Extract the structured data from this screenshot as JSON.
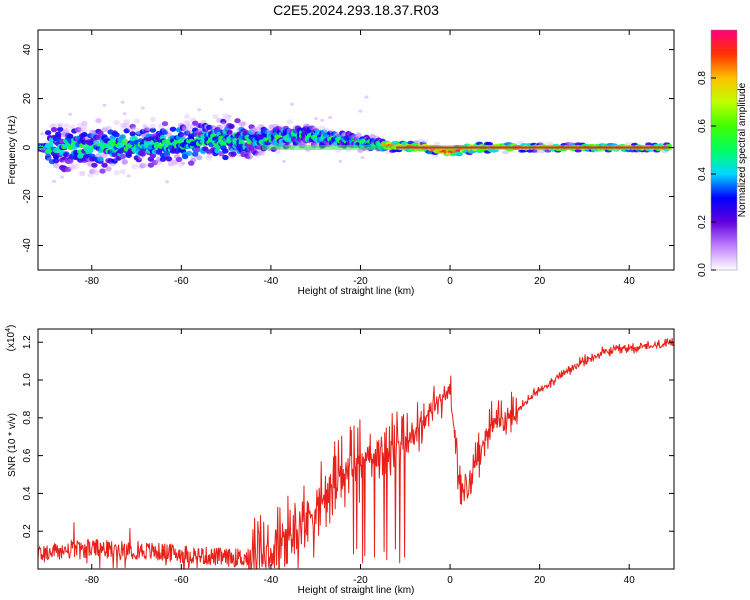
{
  "title": "C2E5.2024.293.18.37.R03",
  "chart_data": [
    {
      "type": "heatmap",
      "xlabel": "Height of straight line (km)",
      "ylabel": "Frequency (Hz)",
      "xlim": [
        -92,
        50
      ],
      "ylim": [
        -50,
        48
      ],
      "xticks": [
        -80,
        -60,
        -40,
        -20,
        0,
        20,
        40
      ],
      "yticks": [
        -40,
        -20,
        0,
        20,
        40
      ],
      "grid": false,
      "colorbar": {
        "label": "Normalized spectral amplitude",
        "range": [
          0,
          1
        ],
        "ticks": [
          "0.0",
          "0.2",
          "0.4",
          "0.6",
          "0.8"
        ],
        "colormap": [
          "#ffffff",
          "#c080ff",
          "#6000e0",
          "#0000ff",
          "#00d8ff",
          "#00ff60",
          "#40ff00",
          "#c0ff00",
          "#ffc000",
          "#ff3000",
          "#ff0080"
        ]
      },
      "ridge": [
        {
          "x": -90,
          "f": 0,
          "spread": 12
        },
        {
          "x": -80,
          "f": 0,
          "spread": 12
        },
        {
          "x": -70,
          "f": 1,
          "spread": 11
        },
        {
          "x": -60,
          "f": 2,
          "spread": 11
        },
        {
          "x": -50,
          "f": 3,
          "spread": 12
        },
        {
          "x": -42,
          "f": 3,
          "spread": 7
        },
        {
          "x": -35,
          "f": 5,
          "spread": 6
        },
        {
          "x": -28,
          "f": 4,
          "spread": 5
        },
        {
          "x": -20,
          "f": 2,
          "spread": 4
        },
        {
          "x": -12,
          "f": 0.5,
          "spread": 3
        },
        {
          "x": -5,
          "f": 0,
          "spread": 3
        },
        {
          "x": 0,
          "f": -2,
          "spread": 3
        },
        {
          "x": 5,
          "f": 0,
          "spread": 3
        },
        {
          "x": 20,
          "f": 0,
          "spread": 2
        },
        {
          "x": 49,
          "f": 0,
          "spread": 2
        }
      ]
    },
    {
      "type": "line",
      "xlabel": "Height of straight line (km)",
      "ylabel": "SNR (10 * v/v)",
      "y_multiplier": "(x10",
      "y_multiplier_exp": "4",
      "y_multiplier_close": ")",
      "xlim": [
        -92,
        50
      ],
      "ylim": [
        0,
        1.27
      ],
      "xticks": [
        -80,
        -60,
        -40,
        -20,
        0,
        20,
        40
      ],
      "yticks": [
        "0.2",
        "0.4",
        "0.6",
        "0.8",
        "1.0",
        "1.2"
      ],
      "color": "#e8201a",
      "grid": false,
      "series": [
        {
          "x": [
            -92,
            -85,
            -80,
            -75,
            -70,
            -65,
            -60,
            -55,
            -50,
            -45,
            -40,
            -37,
            -34,
            -30,
            -26,
            -22,
            -19,
            -16,
            -13,
            -10,
            -7,
            -4,
            -2,
            0,
            1,
            2,
            3,
            4,
            6,
            8,
            10,
            13,
            16,
            20,
            25,
            30,
            35,
            40,
            45,
            50
          ],
          "y": [
            0.08,
            0.1,
            0.11,
            0.1,
            0.1,
            0.09,
            0.08,
            0.07,
            0.06,
            0.06,
            0.08,
            0.15,
            0.22,
            0.32,
            0.45,
            0.55,
            0.6,
            0.62,
            0.64,
            0.68,
            0.75,
            0.85,
            0.9,
            0.95,
            0.7,
            0.45,
            0.4,
            0.42,
            0.6,
            0.72,
            0.78,
            0.8,
            0.86,
            0.95,
            1.03,
            1.1,
            1.15,
            1.17,
            1.18,
            1.19
          ]
        }
      ]
    }
  ]
}
